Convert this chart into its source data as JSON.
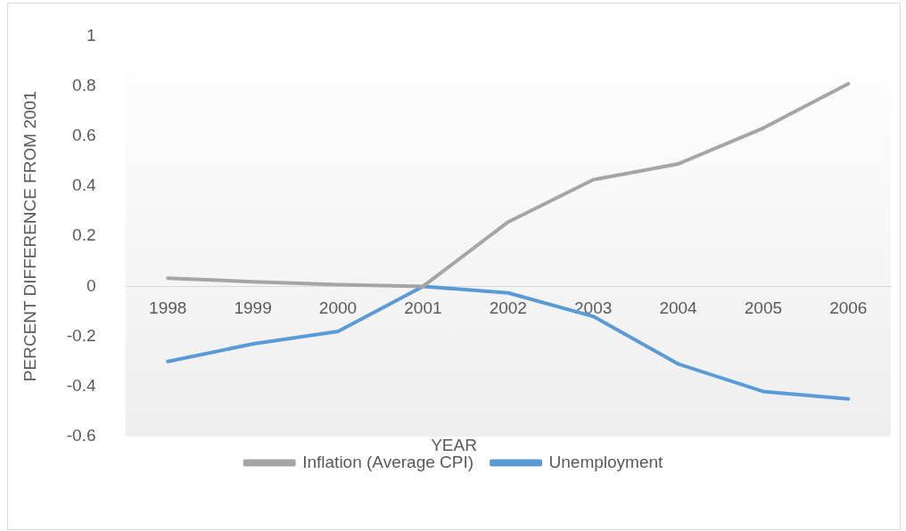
{
  "chart_data": {
    "type": "line",
    "xlabel": "YEAR",
    "ylabel": "PERCENT DIFFERENCE FROM 2001",
    "categories": [
      "1998",
      "1999",
      "2000",
      "2001",
      "2002",
      "2003",
      "2004",
      "2005",
      "2006"
    ],
    "series": [
      {
        "name": "Inflation (Average CPI)",
        "color": "#a5a5a5",
        "values": [
          0.033,
          0.018,
          0.007,
          0,
          0.257,
          0.426,
          0.489,
          0.632,
          0.809
        ]
      },
      {
        "name": "Unemployment",
        "color": "#5b9bd5",
        "values": [
          -0.3,
          -0.23,
          -0.18,
          0,
          -0.026,
          -0.12,
          -0.31,
          -0.42,
          -0.45
        ]
      }
    ],
    "ylim": [
      -0.6,
      1
    ],
    "yticks": [
      -0.6,
      -0.4,
      -0.2,
      0,
      0.2,
      0.4,
      0.6,
      0.8,
      1
    ],
    "grid": false,
    "legend": "bottom",
    "marker": "none",
    "line_style": "solid"
  }
}
